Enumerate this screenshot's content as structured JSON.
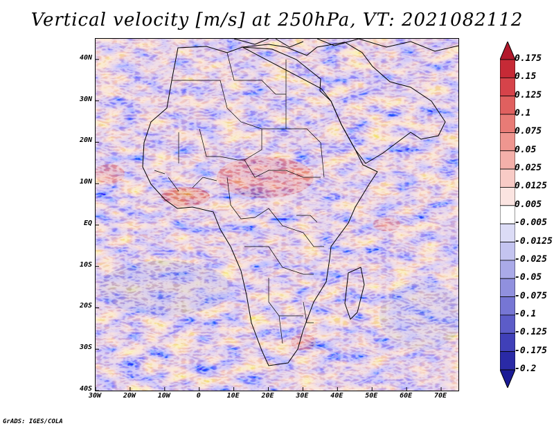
{
  "title": "Vertical velocity [m/s] at 250hPa, VT: 2021082112",
  "credit": "GrADS: IGES/COLA",
  "map": {
    "projection": "lat-lon",
    "lon_range": [
      -30,
      75
    ],
    "lat_range": [
      -40,
      45
    ],
    "lat_labels": [
      "40N",
      "30N",
      "20N",
      "10N",
      "EQ",
      "10S",
      "20S",
      "30S",
      "40S"
    ],
    "lat_values": [
      40,
      30,
      20,
      10,
      0,
      -10,
      -20,
      -30,
      -40
    ],
    "lon_labels": [
      "30W",
      "20W",
      "10W",
      "0",
      "10E",
      "20E",
      "30E",
      "40E",
      "50E",
      "60E",
      "70E"
    ],
    "lon_values": [
      -30,
      -20,
      -10,
      0,
      10,
      20,
      30,
      40,
      50,
      60,
      70
    ]
  },
  "colorbar": {
    "labels": [
      "0.175",
      "0.15",
      "0.125",
      "0.1",
      "0.075",
      "0.05",
      "0.025",
      "0.0125",
      "0.005",
      "-0.005",
      "-0.0125",
      "-0.025",
      "-0.05",
      "-0.075",
      "-0.1",
      "-0.125",
      "-0.175",
      "-0.2"
    ],
    "colors": [
      "#b2182b",
      "#c62a36",
      "#d6434a",
      "#e0605f",
      "#e87b76",
      "#ef9690",
      "#f4b0aa",
      "#f8cbc6",
      "#fbe4e1",
      "#ffffff",
      "#dcdcf6",
      "#c4c4f0",
      "#aaaae8",
      "#9090de",
      "#7676d4",
      "#5c5cc8",
      "#4040b8",
      "#2a2aa6",
      "#1a1a95"
    ]
  }
}
